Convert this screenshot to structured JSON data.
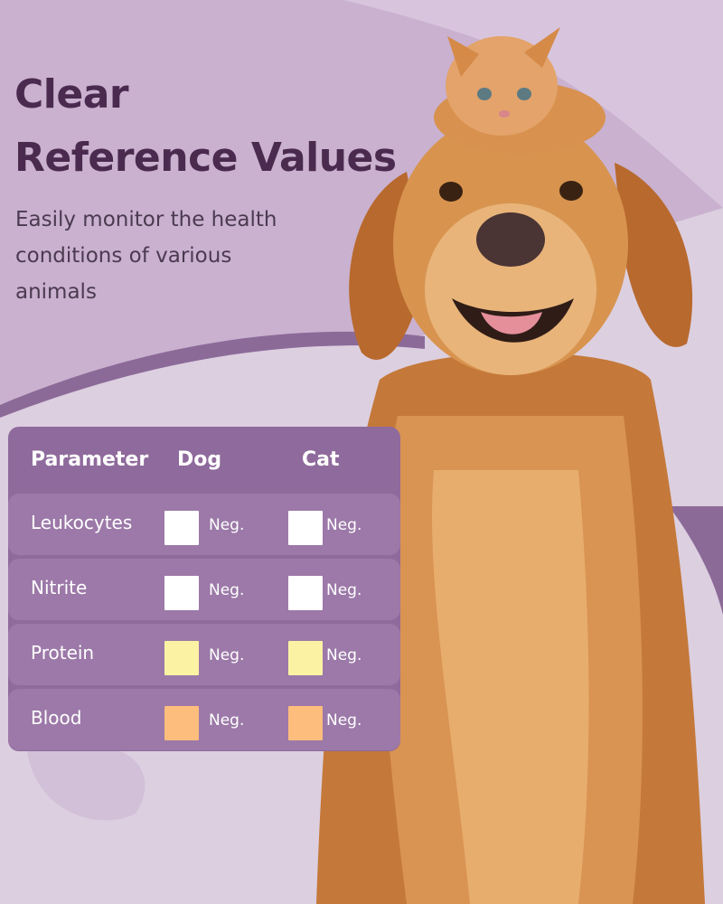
{
  "heading": {
    "line1": "Clear",
    "line2": "Reference Values"
  },
  "subtitle": "Easily monitor the health conditions of various animals",
  "table": {
    "headers": {
      "parameter": "Parameter",
      "dog": "Dog",
      "cat": "Cat"
    },
    "rows": [
      {
        "parameter": "Leukocytes",
        "dog": "Neg.",
        "cat": "Neg.",
        "dog_color": "#ffffff",
        "cat_color": "#ffffff"
      },
      {
        "parameter": "Nitrite",
        "dog": "Neg.",
        "cat": "Neg.",
        "dog_color": "#ffffff",
        "cat_color": "#ffffff"
      },
      {
        "parameter": "Protein",
        "dog": "Neg.",
        "cat": "Neg.",
        "dog_color": "#fbf3a3",
        "cat_color": "#fbf3a3"
      },
      {
        "parameter": "Blood",
        "dog": "Neg.",
        "cat": "Neg.",
        "dog_color": "#fdbd7d",
        "cat_color": "#fdbd7d"
      }
    ]
  },
  "colors": {
    "background": "#dccfe0",
    "accent_purple": "#8f6a9c",
    "heading": "#4a2a4e"
  }
}
